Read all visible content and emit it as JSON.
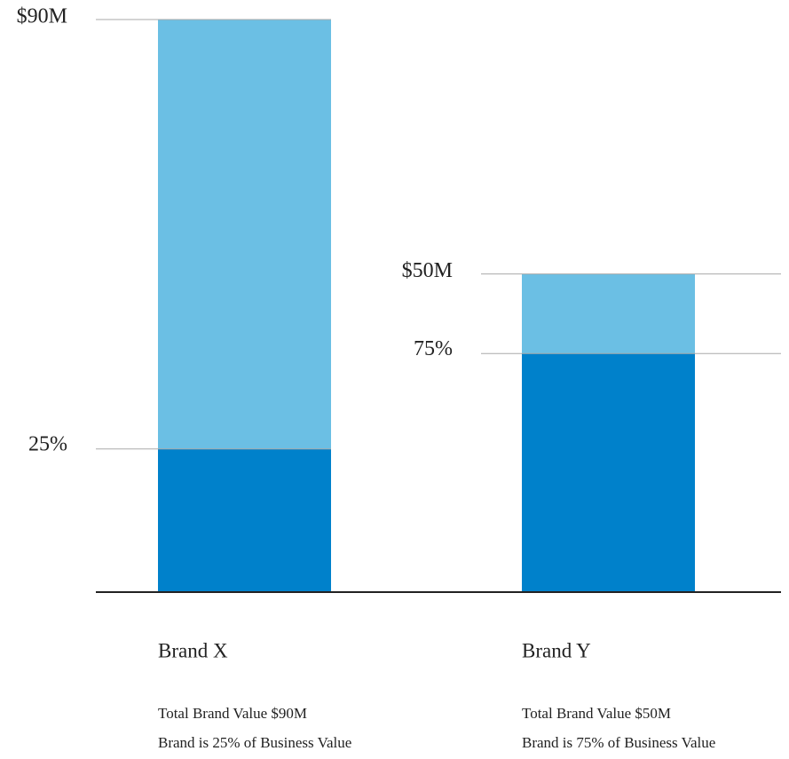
{
  "chart_data": {
    "type": "bar",
    "categories": [
      "Brand X",
      "Brand Y"
    ],
    "values": [
      90,
      50
    ],
    "value_labels": [
      "$90M",
      "$50M"
    ],
    "color": "#6bbfe4",
    "shares": [
      25,
      75
    ],
    "share_labels": [
      "25%",
      "75%"
    ],
    "share_color": "#0081cb",
    "notes": [
      [
        "Total Brand Value $90M",
        "Brand is 25% of Business Value"
      ],
      [
        "Total Brand Value $50M",
        "Brand is 75% of Business Value"
      ]
    ],
    "ylim": [
      0,
      90
    ]
  }
}
